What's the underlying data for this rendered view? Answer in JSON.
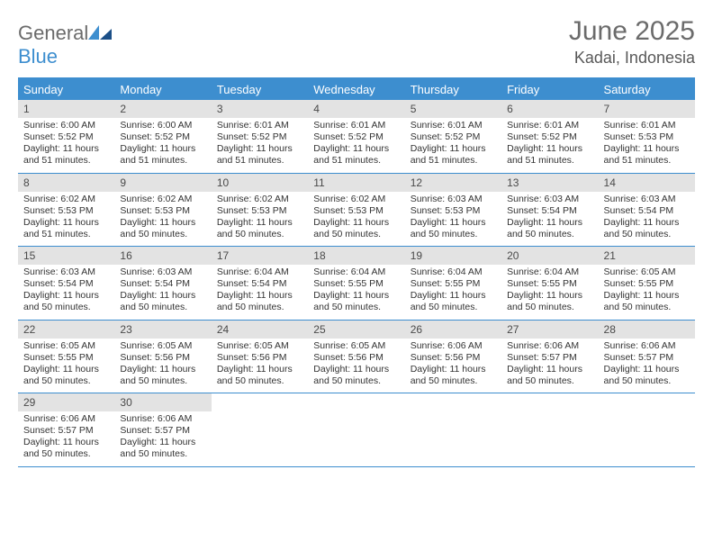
{
  "brand": {
    "word1": "General",
    "word2": "Blue"
  },
  "header": {
    "title": "June 2025",
    "location": "Kadai, Indonesia"
  },
  "colors": {
    "accent": "#3d8ecf",
    "dow_bg": "#3d8ecf",
    "dow_text": "#ffffff",
    "date_bg": "#e3e3e3",
    "text": "#333333",
    "muted": "#6b6b6b"
  },
  "dows": [
    "Sunday",
    "Monday",
    "Tuesday",
    "Wednesday",
    "Thursday",
    "Friday",
    "Saturday"
  ],
  "labels": {
    "sunrise": "Sunrise:",
    "sunset": "Sunset:",
    "daylight": "Daylight:"
  },
  "weeks": [
    [
      {
        "d": "1",
        "sr": "6:00 AM",
        "ss": "5:52 PM",
        "dl": "11 hours and 51 minutes."
      },
      {
        "d": "2",
        "sr": "6:00 AM",
        "ss": "5:52 PM",
        "dl": "11 hours and 51 minutes."
      },
      {
        "d": "3",
        "sr": "6:01 AM",
        "ss": "5:52 PM",
        "dl": "11 hours and 51 minutes."
      },
      {
        "d": "4",
        "sr": "6:01 AM",
        "ss": "5:52 PM",
        "dl": "11 hours and 51 minutes."
      },
      {
        "d": "5",
        "sr": "6:01 AM",
        "ss": "5:52 PM",
        "dl": "11 hours and 51 minutes."
      },
      {
        "d": "6",
        "sr": "6:01 AM",
        "ss": "5:52 PM",
        "dl": "11 hours and 51 minutes."
      },
      {
        "d": "7",
        "sr": "6:01 AM",
        "ss": "5:53 PM",
        "dl": "11 hours and 51 minutes."
      }
    ],
    [
      {
        "d": "8",
        "sr": "6:02 AM",
        "ss": "5:53 PM",
        "dl": "11 hours and 51 minutes."
      },
      {
        "d": "9",
        "sr": "6:02 AM",
        "ss": "5:53 PM",
        "dl": "11 hours and 50 minutes."
      },
      {
        "d": "10",
        "sr": "6:02 AM",
        "ss": "5:53 PM",
        "dl": "11 hours and 50 minutes."
      },
      {
        "d": "11",
        "sr": "6:02 AM",
        "ss": "5:53 PM",
        "dl": "11 hours and 50 minutes."
      },
      {
        "d": "12",
        "sr": "6:03 AM",
        "ss": "5:53 PM",
        "dl": "11 hours and 50 minutes."
      },
      {
        "d": "13",
        "sr": "6:03 AM",
        "ss": "5:54 PM",
        "dl": "11 hours and 50 minutes."
      },
      {
        "d": "14",
        "sr": "6:03 AM",
        "ss": "5:54 PM",
        "dl": "11 hours and 50 minutes."
      }
    ],
    [
      {
        "d": "15",
        "sr": "6:03 AM",
        "ss": "5:54 PM",
        "dl": "11 hours and 50 minutes."
      },
      {
        "d": "16",
        "sr": "6:03 AM",
        "ss": "5:54 PM",
        "dl": "11 hours and 50 minutes."
      },
      {
        "d": "17",
        "sr": "6:04 AM",
        "ss": "5:54 PM",
        "dl": "11 hours and 50 minutes."
      },
      {
        "d": "18",
        "sr": "6:04 AM",
        "ss": "5:55 PM",
        "dl": "11 hours and 50 minutes."
      },
      {
        "d": "19",
        "sr": "6:04 AM",
        "ss": "5:55 PM",
        "dl": "11 hours and 50 minutes."
      },
      {
        "d": "20",
        "sr": "6:04 AM",
        "ss": "5:55 PM",
        "dl": "11 hours and 50 minutes."
      },
      {
        "d": "21",
        "sr": "6:05 AM",
        "ss": "5:55 PM",
        "dl": "11 hours and 50 minutes."
      }
    ],
    [
      {
        "d": "22",
        "sr": "6:05 AM",
        "ss": "5:55 PM",
        "dl": "11 hours and 50 minutes."
      },
      {
        "d": "23",
        "sr": "6:05 AM",
        "ss": "5:56 PM",
        "dl": "11 hours and 50 minutes."
      },
      {
        "d": "24",
        "sr": "6:05 AM",
        "ss": "5:56 PM",
        "dl": "11 hours and 50 minutes."
      },
      {
        "d": "25",
        "sr": "6:05 AM",
        "ss": "5:56 PM",
        "dl": "11 hours and 50 minutes."
      },
      {
        "d": "26",
        "sr": "6:06 AM",
        "ss": "5:56 PM",
        "dl": "11 hours and 50 minutes."
      },
      {
        "d": "27",
        "sr": "6:06 AM",
        "ss": "5:57 PM",
        "dl": "11 hours and 50 minutes."
      },
      {
        "d": "28",
        "sr": "6:06 AM",
        "ss": "5:57 PM",
        "dl": "11 hours and 50 minutes."
      }
    ],
    [
      {
        "d": "29",
        "sr": "6:06 AM",
        "ss": "5:57 PM",
        "dl": "11 hours and 50 minutes."
      },
      {
        "d": "30",
        "sr": "6:06 AM",
        "ss": "5:57 PM",
        "dl": "11 hours and 50 minutes."
      },
      {
        "empty": true
      },
      {
        "empty": true
      },
      {
        "empty": true
      },
      {
        "empty": true
      },
      {
        "empty": true
      }
    ]
  ]
}
